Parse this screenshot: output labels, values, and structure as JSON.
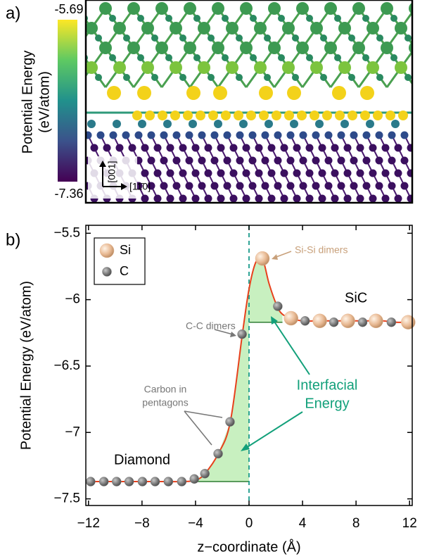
{
  "panel_a": {
    "label": "a)",
    "colorbar": {
      "title_line1": "Potential Energy",
      "title_line2": "(eV/atom)",
      "max": -5.69,
      "min": -7.36,
      "colors": [
        "#440154",
        "#3b528b",
        "#21918c",
        "#5ec962",
        "#fde725"
      ]
    },
    "direction_up": "[001]",
    "direction_right": "[11̄0]"
  },
  "chart_data": {
    "type": "scatter",
    "label": "b)",
    "xlabel": "z−coordinate (Å)",
    "ylabel": "Potential Energy (eV/atom)",
    "xlim": [
      -12.2,
      12.2
    ],
    "ylim": [
      -7.55,
      -5.44
    ],
    "xticks": [
      {
        "value": -12,
        "label": "−12"
      },
      {
        "value": -8,
        "label": "−8"
      },
      {
        "value": -4,
        "label": "−4"
      },
      0,
      4,
      8,
      12
    ],
    "yticks": [
      {
        "value": -5.5,
        "label": "−5.5"
      },
      {
        "value": -6,
        "label": "−6"
      },
      {
        "value": -6.5,
        "label": "−6.5"
      },
      {
        "value": -7,
        "label": "−7"
      },
      {
        "value": -7.5,
        "label": "−7.5"
      }
    ],
    "legend": "upper left",
    "series": [
      {
        "name": "Si",
        "color": "#e8b993",
        "x": [
          1.0,
          3.14,
          5.29,
          7.39,
          9.49,
          11.9
        ],
        "values": [
          -5.69,
          -6.14,
          -6.16,
          -6.16,
          -6.16,
          -6.17
        ]
      },
      {
        "name": "C",
        "color": "#7a7a7a",
        "x": [
          -11.84,
          -10.85,
          -9.9,
          -8.96,
          -7.97,
          -7.02,
          -6.03,
          -5.03,
          -4.09,
          -3.3,
          -2.31,
          -1.42,
          -0.52,
          2.15,
          4.19,
          6.34,
          8.49,
          10.64
        ],
        "values": [
          -7.37,
          -7.37,
          -7.37,
          -7.37,
          -7.37,
          -7.37,
          -7.37,
          -7.37,
          -7.35,
          -7.31,
          -7.16,
          -6.92,
          -6.26,
          -6.05,
          -6.16,
          -6.17,
          -6.17,
          -6.17
        ]
      }
    ],
    "curve": {
      "color": "#e8401c",
      "x": [
        -12,
        -11,
        -10,
        -9,
        -8,
        -7,
        -6,
        -5,
        -4,
        -3.3,
        -2.3,
        -1.4,
        -0.5,
        0,
        0.5,
        1.0,
        1.5,
        2.1,
        2.5,
        3.1,
        4,
        5,
        6,
        7,
        8,
        9,
        10,
        11,
        12
      ],
      "values": [
        -7.37,
        -7.37,
        -7.37,
        -7.37,
        -7.37,
        -7.37,
        -7.37,
        -7.37,
        -7.36,
        -7.31,
        -7.16,
        -6.92,
        -6.26,
        -5.92,
        -5.72,
        -5.69,
        -5.88,
        -6.05,
        -6.11,
        -6.14,
        -6.16,
        -6.16,
        -6.16,
        -6.16,
        -6.16,
        -6.16,
        -6.16,
        -6.17,
        -6.17
      ]
    },
    "shaded": {
      "color": "#c8f0c0",
      "edge_color": "#2e7d32",
      "regions": [
        {
          "x": [
            -4,
            0
          ],
          "baseline": -7.37
        },
        {
          "x": [
            0,
            2.5
          ],
          "baseline": -6.17
        }
      ]
    },
    "vline": {
      "x": 0,
      "color": "#1a9a8a"
    },
    "annotations": {
      "si_dimers": "Si-Si dimers",
      "c_dimers": "C-C dimers",
      "pentagons_line1": "Carbon in",
      "pentagons_line2": "pentagons",
      "interfacial_line1": "Interfacial",
      "interfacial_line2": "Energy",
      "sic": "SiC",
      "diamond": "Diamond"
    }
  }
}
